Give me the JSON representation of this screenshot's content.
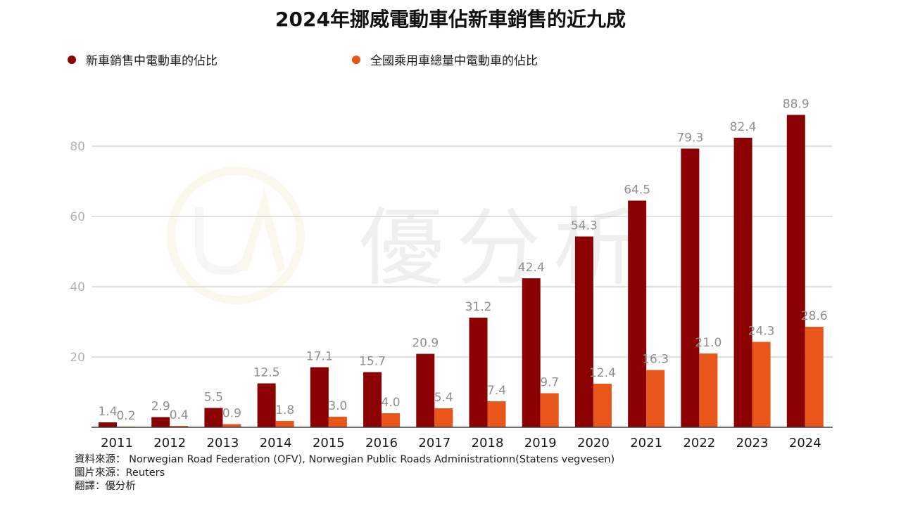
{
  "title": "2024年挪威電動車佔新車銷售的近九成",
  "legend": [
    {
      "label": "新車銷售中電動車的佔比",
      "color": "#8B0000"
    },
    {
      "label": "全國乘用車總量中電動車的佔比",
      "color": "#E8561A"
    }
  ],
  "watermark": {
    "text": "優分析",
    "logo": "UA"
  },
  "footer": {
    "source": "資料來源： Norwegian Road Federation (OFV), Norwegian Public Roads Administrationn(Statens vegvesen)",
    "image_source": "圖片來源：Reuters",
    "translation": "翻譯：優分析"
  },
  "chart_data": {
    "type": "bar",
    "title": "2024年挪威電動車佔新車銷售的近九成",
    "categories": [
      "2011",
      "2012",
      "2013",
      "2014",
      "2015",
      "2016",
      "2017",
      "2018",
      "2019",
      "2020",
      "2021",
      "2022",
      "2023",
      "2024"
    ],
    "series": [
      {
        "name": "新車銷售中電動車的佔比",
        "color": "#8B0000",
        "values": [
          1.4,
          2.9,
          5.5,
          12.5,
          17.1,
          15.7,
          20.9,
          31.2,
          42.4,
          54.3,
          64.5,
          79.3,
          82.4,
          88.9
        ],
        "labels": [
          "1.4",
          "2.9",
          "5.5",
          "12.5",
          "17.1",
          "15.7",
          "20.9",
          "31.2",
          "42.4",
          "54.3",
          "64.5",
          "79.3",
          "82.4",
          "88.9"
        ]
      },
      {
        "name": "全國乘用車總量中電動車的佔比",
        "color": "#E8561A",
        "values": [
          0.2,
          0.4,
          0.9,
          1.8,
          3.0,
          4.0,
          5.4,
          7.4,
          9.7,
          12.4,
          16.3,
          21.0,
          24.3,
          28.6
        ],
        "labels": [
          "0.2",
          "0.4",
          "0.9",
          "1.8",
          "3.0",
          "4.0",
          "5.4",
          "7.4",
          "9.7",
          "12.4",
          "16.3",
          "21.0",
          "24.3",
          "28.6"
        ]
      }
    ],
    "yticks": [
      20,
      40,
      60,
      80
    ],
    "ylim": [
      0,
      90
    ],
    "grid": true,
    "legend_position": "top-left"
  }
}
